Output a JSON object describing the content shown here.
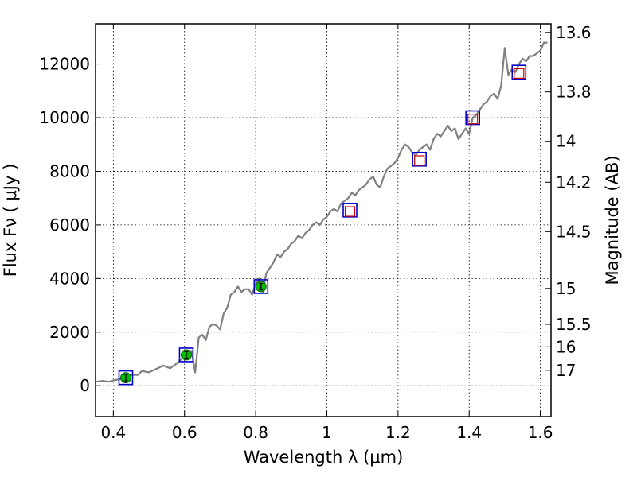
{
  "chart_data": {
    "type": "line",
    "xlabel": "Wavelength  λ (μm)",
    "ylabel": "Flux  Fν  ( μJy )",
    "y2label": "Magnitude (AB)",
    "xlim": [
      0.35,
      1.63
    ],
    "ylim": [
      -1150,
      13500
    ],
    "grid": true,
    "x_ticks": [
      {
        "value": 0.4,
        "label": "0.4"
      },
      {
        "value": 0.6,
        "label": "0.6"
      },
      {
        "value": 0.8,
        "label": "0.8"
      },
      {
        "value": 1.0,
        "label": "1"
      },
      {
        "value": 1.2,
        "label": "1.2"
      },
      {
        "value": 1.4,
        "label": "1.4"
      },
      {
        "value": 1.6,
        "label": "1.6"
      }
    ],
    "y_ticks": [
      {
        "value": 0,
        "label": "0"
      },
      {
        "value": 2000,
        "label": "2000"
      },
      {
        "value": 4000,
        "label": "4000"
      },
      {
        "value": 6000,
        "label": "6000"
      },
      {
        "value": 8000,
        "label": "8000"
      },
      {
        "value": 10000,
        "label": "10000"
      },
      {
        "value": 12000,
        "label": "12000"
      }
    ],
    "mag_ticks": [
      {
        "label": "13.6",
        "flux": 13180
      },
      {
        "label": "13.8",
        "flux": 10960
      },
      {
        "label": "14",
        "flux": 9120
      },
      {
        "label": "14.2",
        "flux": 7590
      },
      {
        "label": "14.5",
        "flux": 5750
      },
      {
        "label": "15",
        "flux": 3630
      },
      {
        "label": "15.5",
        "flux": 2290
      },
      {
        "label": "16",
        "flux": 1450
      },
      {
        "label": "17",
        "flux": 575
      }
    ],
    "series": [
      {
        "style": "spectrum",
        "color": "#808080",
        "x": [
          0.35,
          0.37,
          0.39,
          0.4,
          0.42,
          0.43,
          0.45,
          0.47,
          0.48,
          0.5,
          0.52,
          0.54,
          0.56,
          0.58,
          0.6,
          0.62,
          0.63,
          0.64,
          0.65,
          0.66,
          0.67,
          0.68,
          0.69,
          0.7,
          0.71,
          0.72,
          0.73,
          0.74,
          0.75,
          0.76,
          0.77,
          0.78,
          0.79,
          0.8,
          0.81,
          0.82,
          0.83,
          0.84,
          0.85,
          0.86,
          0.87,
          0.88,
          0.89,
          0.9,
          0.91,
          0.92,
          0.93,
          0.94,
          0.95,
          0.96,
          0.97,
          0.98,
          0.99,
          1.0,
          1.01,
          1.02,
          1.03,
          1.04,
          1.05,
          1.06,
          1.07,
          1.08,
          1.09,
          1.1,
          1.11,
          1.12,
          1.13,
          1.14,
          1.15,
          1.16,
          1.17,
          1.18,
          1.19,
          1.2,
          1.21,
          1.22,
          1.23,
          1.24,
          1.25,
          1.26,
          1.27,
          1.28,
          1.29,
          1.3,
          1.31,
          1.32,
          1.33,
          1.34,
          1.35,
          1.36,
          1.37,
          1.38,
          1.39,
          1.4,
          1.41,
          1.42,
          1.43,
          1.44,
          1.45,
          1.46,
          1.47,
          1.48,
          1.49,
          1.5,
          1.51,
          1.52,
          1.53,
          1.54,
          1.55,
          1.56,
          1.57,
          1.58,
          1.59,
          1.6,
          1.61,
          1.62
        ],
        "y": [
          150,
          180,
          150,
          200,
          250,
          300,
          400,
          400,
          550,
          500,
          620,
          750,
          650,
          850,
          1100,
          1300,
          500,
          1800,
          1900,
          1700,
          2200,
          2300,
          2250,
          2100,
          2700,
          2900,
          3400,
          3500,
          3700,
          3500,
          3600,
          3600,
          3400,
          3800,
          4000,
          3500,
          4200,
          4400,
          4600,
          4900,
          4800,
          5000,
          5100,
          5300,
          5400,
          5600,
          5500,
          5700,
          5800,
          6000,
          6100,
          6000,
          6200,
          6300,
          6500,
          6600,
          6500,
          6800,
          6900,
          7000,
          7200,
          7100,
          7300,
          7400,
          7500,
          7700,
          7800,
          7500,
          7400,
          7800,
          8100,
          8200,
          8300,
          8500,
          8800,
          9000,
          8900,
          8700,
          8600,
          8800,
          8900,
          9000,
          8800,
          9200,
          9400,
          9300,
          9500,
          9700,
          9500,
          9600,
          9200,
          9400,
          9600,
          9400,
          10000,
          10100,
          10300,
          10500,
          10600,
          10800,
          10900,
          10700,
          11200,
          12600,
          11600,
          11800,
          11700,
          12000,
          12200,
          12100,
          12300,
          12300,
          12400,
          12500,
          12800,
          12800
        ]
      },
      {
        "style": "model-squares",
        "color": "#0000cc",
        "x": [
          0.435,
          0.605,
          0.815,
          1.065,
          1.26,
          1.41,
          1.54
        ],
        "y": [
          300,
          1150,
          3700,
          6550,
          8450,
          10000,
          11700
        ]
      },
      {
        "style": "model-squares-red",
        "color": "#cc0000",
        "x": [
          1.065,
          1.26,
          1.41,
          1.54
        ],
        "y": [
          6500,
          8400,
          9950,
          11650
        ]
      },
      {
        "style": "observed-points",
        "color": "#00bb00",
        "x": [
          0.435,
          0.605,
          0.815
        ],
        "y": [
          300,
          1150,
          3700
        ]
      }
    ]
  }
}
